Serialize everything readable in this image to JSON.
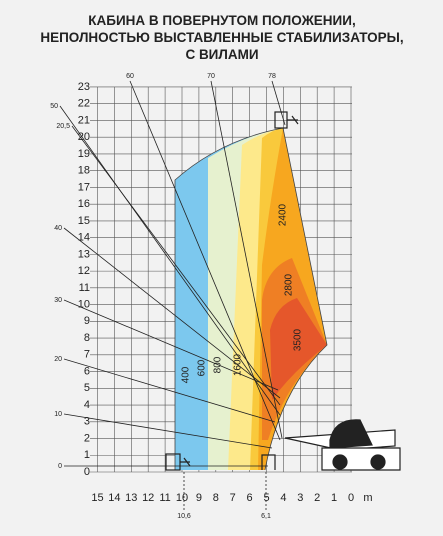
{
  "title": [
    "КАБИНА В ПОВЕРНУТОМ ПОЛОЖЕНИИ,",
    "НЕПОЛНОСТЬЮ ВЫСТАВЛЕННЫЕ СТАБИЛИЗАТОРЫ,",
    "С ВИЛАМИ"
  ],
  "y_axis": {
    "labels": [
      "0",
      "1",
      "2",
      "3",
      "4",
      "5",
      "6",
      "7",
      "8",
      "9",
      "10",
      "11",
      "12",
      "13",
      "14",
      "15",
      "16",
      "17",
      "18",
      "19",
      "20",
      "21",
      "22",
      "23"
    ]
  },
  "x_axis": {
    "labels": [
      "15",
      "14",
      "13",
      "12",
      "11",
      "10",
      "9",
      "8",
      "7",
      "6",
      "5",
      "4",
      "3",
      "2",
      "1",
      "0"
    ],
    "unit": "m"
  },
  "angles": [
    "60",
    "70",
    "78",
    "50",
    "20,5",
    "40",
    "30",
    "20",
    "10",
    "0"
  ],
  "reach_marks": [
    "10,6",
    "6,1"
  ],
  "zones": [
    "400",
    "600",
    "800",
    "1600",
    "2400",
    "2800",
    "3500"
  ]
}
